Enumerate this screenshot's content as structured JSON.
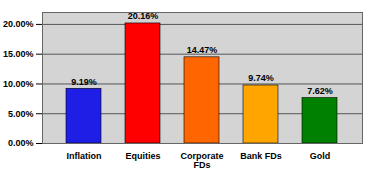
{
  "chart_data": {
    "type": "bar",
    "categories": [
      "Inflation",
      "Equities",
      "Corporate FDs",
      "Bank FDs",
      "Gold"
    ],
    "values": [
      9.19,
      20.16,
      14.47,
      9.74,
      7.62
    ],
    "value_labels": [
      "9.19%",
      "20.16%",
      "14.47%",
      "9.74%",
      "7.62%"
    ],
    "colors": [
      "#1e1ee6",
      "#ff0000",
      "#ff6600",
      "#ffa500",
      "#008000"
    ],
    "ylim": [
      0,
      22
    ],
    "yticks": [
      {
        "value": 0,
        "label": "0.00%"
      },
      {
        "value": 5,
        "label": "5.00%"
      },
      {
        "value": 10,
        "label": "10.00%"
      },
      {
        "value": 15,
        "label": "15.00%"
      },
      {
        "value": 20,
        "label": "20.00%"
      }
    ],
    "grid": true,
    "data_labels": true
  }
}
